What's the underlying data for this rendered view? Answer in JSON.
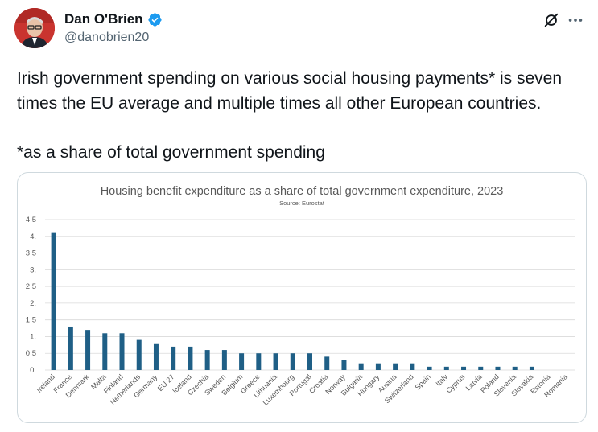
{
  "author": {
    "display_name": "Dan O'Brien",
    "handle": "@danobrien20"
  },
  "tweet": {
    "line1": "Irish government spending on various social housing payments* is seven times the EU average and multiple times all other European countries.",
    "line2": "*as a share of total government spending"
  },
  "icons": {
    "verified": "verified-badge-icon",
    "grok": "grok-icon",
    "more": "more-icon"
  },
  "colors": {
    "bar": "#1f5f86",
    "verified": "#1d9bf0",
    "handle": "#536471"
  },
  "chart_data": {
    "type": "bar",
    "title": "Housing benefit expenditure as a share of total government expenditure, 2023",
    "subtitle": "Source: Eurostat",
    "categories": [
      "Ireland",
      "France",
      "Denmark",
      "Malta",
      "Finland",
      "Netherlands",
      "Germany",
      "EU 27",
      "Iceland",
      "Czechia",
      "Sweden",
      "Belgium",
      "Greece",
      "Lithuania",
      "Luxembourg",
      "Portugal",
      "Croatia",
      "Norway",
      "Bulgaria",
      "Hungary",
      "Austria",
      "Switzerland",
      "Spain",
      "Italy",
      "Cyprus",
      "Latvia",
      "Poland",
      "Slovenia",
      "Slovakia",
      "Estonia",
      "Romania"
    ],
    "values": [
      4.1,
      1.3,
      1.2,
      1.1,
      1.1,
      0.9,
      0.8,
      0.7,
      0.7,
      0.6,
      0.6,
      0.5,
      0.5,
      0.5,
      0.5,
      0.5,
      0.4,
      0.3,
      0.2,
      0.2,
      0.2,
      0.2,
      0.1,
      0.1,
      0.1,
      0.1,
      0.1,
      0.1,
      0.1,
      0,
      0
    ],
    "y_ticks": [
      "0.",
      "0.5",
      "1.",
      "1.5",
      "2.",
      "2.5",
      "3.",
      "3.5",
      "4.",
      "4.5"
    ],
    "ylim": [
      0,
      4.5
    ],
    "grid": true,
    "legend": "none"
  }
}
